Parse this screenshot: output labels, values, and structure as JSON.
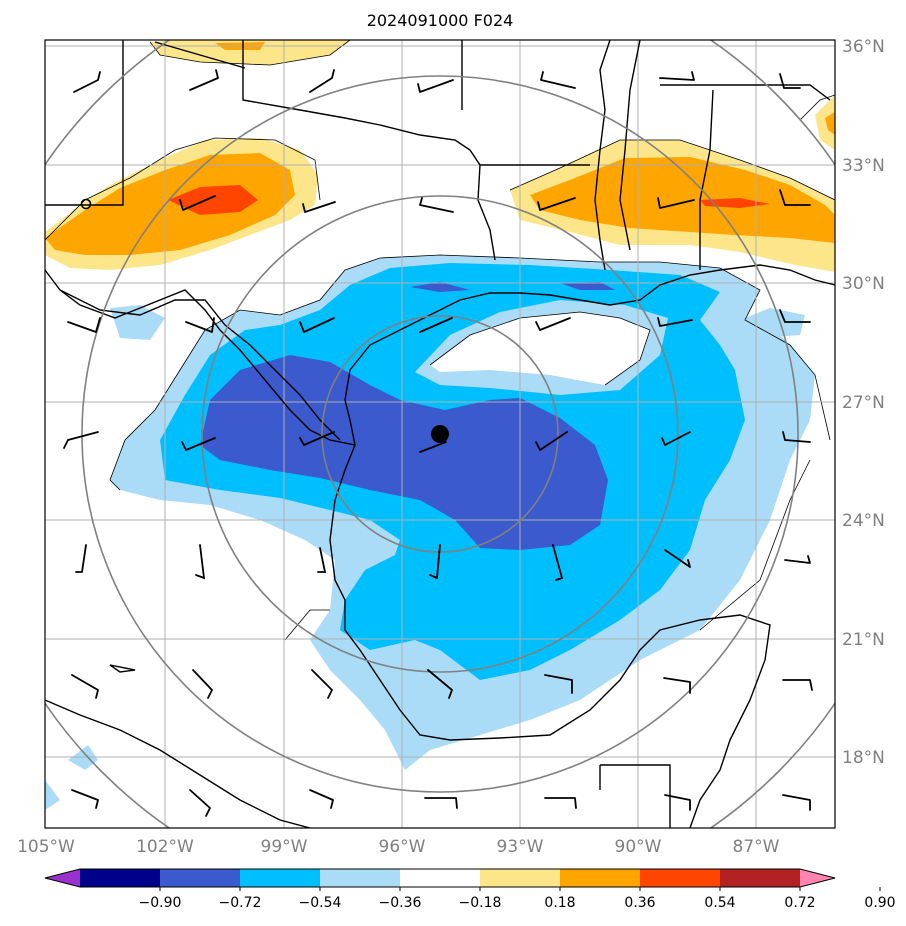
{
  "title": "2024091000 F024",
  "lat_labels": [
    "36°N",
    "33°N",
    "30°N",
    "27°N",
    "24°N",
    "21°N",
    "18°N"
  ],
  "lon_labels": [
    "105°W",
    "102°W",
    "99°W",
    "96°W",
    "93°W",
    "90°W",
    "87°W"
  ],
  "colorbar": {
    "ticks": [
      "−0.90",
      "−0.72",
      "−0.54",
      "−0.36",
      "−0.18",
      "0.18",
      "0.36",
      "0.54",
      "0.72",
      "0.90"
    ],
    "colors": [
      "#9932cc",
      "#00008b",
      "#3a5acd",
      "#00bfff",
      "#aadcf8",
      "#ffffff",
      "#fde68a",
      "#ffa500",
      "#ff4500",
      "#b22222",
      "#ff85b0"
    ]
  },
  "storm_center": {
    "lat": 26.2,
    "lon": -95.0
  },
  "map_extent": {
    "lon": [
      -105,
      -85
    ],
    "lat": [
      16,
      36
    ]
  },
  "grid": true,
  "range_rings": true,
  "wind_barbs": true
}
